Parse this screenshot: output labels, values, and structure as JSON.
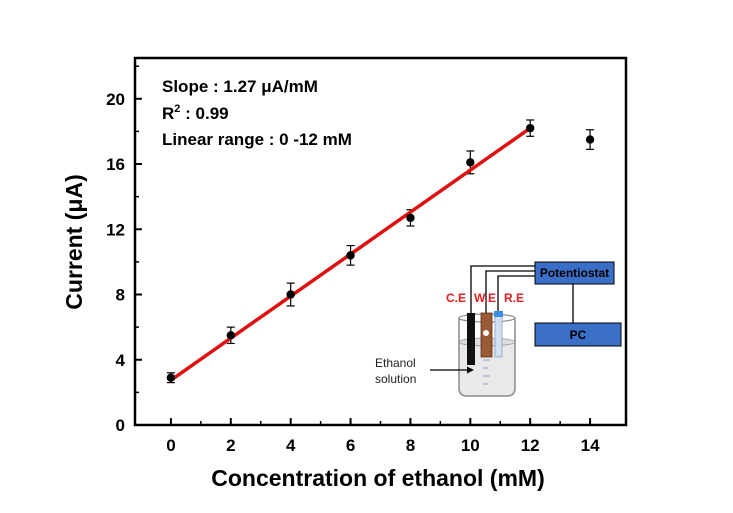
{
  "chart_data": {
    "type": "scatter",
    "xlabel": "Concentration of ethanol (mM)",
    "ylabel": "Current (μA)",
    "xlim": [
      -1.2,
      15.2
    ],
    "ylim": [
      0,
      22.5
    ],
    "x_ticks": [
      0,
      2,
      4,
      6,
      8,
      10,
      12,
      14
    ],
    "y_ticks": [
      0,
      4,
      8,
      12,
      16,
      20
    ],
    "grid": false,
    "series": [
      {
        "x": [
          0,
          2,
          4,
          6,
          8,
          10,
          12,
          14
        ],
        "y": [
          2.9,
          5.5,
          8.0,
          10.4,
          12.7,
          16.1,
          18.2,
          17.5
        ],
        "error": [
          0.3,
          0.5,
          0.7,
          0.6,
          0.5,
          0.7,
          0.5,
          0.6
        ],
        "marker": "circle",
        "color": "#000000"
      }
    ],
    "fit_line": {
      "x": [
        0,
        12
      ],
      "y": [
        2.75,
        18.2
      ],
      "color": "#e01010"
    },
    "annotations": {
      "slope": "Slope : 1.27 μA/mM",
      "r2_prefix": "R",
      "r2_superscript": "2",
      "r2_suffix": " : 0.99",
      "range": "Linear range : 0 -12 mM"
    },
    "inset": {
      "potentiostat": "Potentiostat",
      "pc": "PC",
      "ce": "C.E",
      "we": "W.E",
      "re": "R.E",
      "solution_line1": "Ethanol",
      "solution_line2": "solution",
      "box_color": "#3a6fc8",
      "label_color": "#e02020"
    }
  }
}
